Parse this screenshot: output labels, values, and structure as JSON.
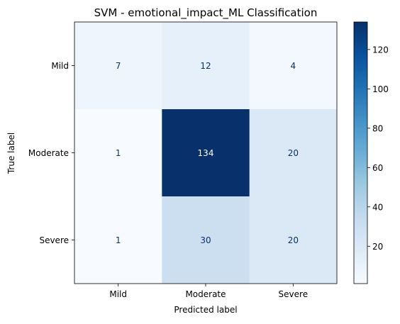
{
  "chart_data": {
    "type": "heatmap",
    "title": "SVM - emotional_impact_ML Classification",
    "xlabel": "Predicted label",
    "ylabel": "True label",
    "x_categories": [
      "Mild",
      "Moderate",
      "Severe"
    ],
    "y_categories": [
      "Mild",
      "Moderate",
      "Severe"
    ],
    "matrix": [
      [
        7,
        12,
        4
      ],
      [
        1,
        134,
        20
      ],
      [
        1,
        30,
        20
      ]
    ],
    "colormap": "Blues",
    "colorbar": {
      "vmin": 1,
      "vmax": 134,
      "ticks": [
        20,
        40,
        60,
        80,
        100,
        120
      ]
    },
    "grid": false
  },
  "colors": {
    "dark_text": "#08306b",
    "light_text": "#ffffff",
    "axis": "#000000"
  }
}
